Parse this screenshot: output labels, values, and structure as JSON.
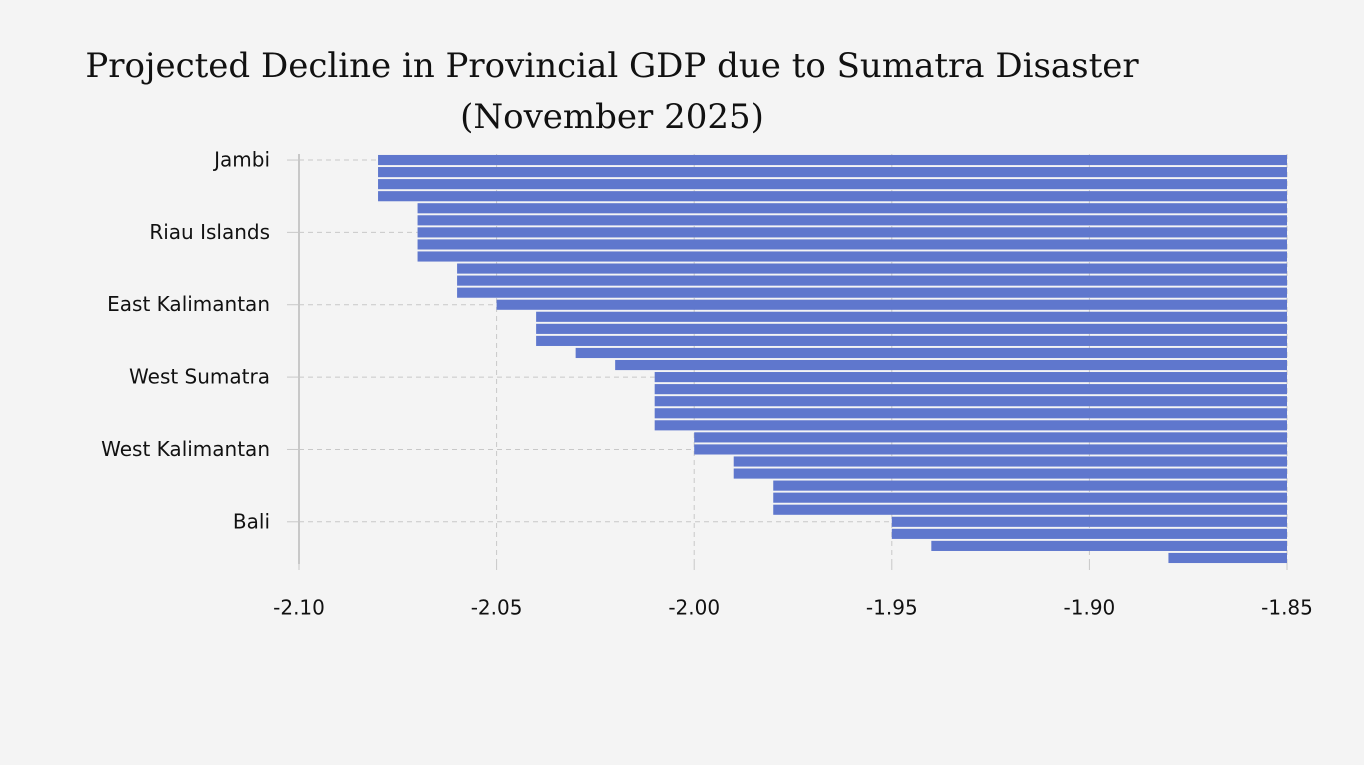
{
  "chart_data": {
    "type": "barh",
    "title": "Projected Decline in Provincial GDP due to Sumatra Disaster",
    "subtitle": "(November 2025)",
    "categories": [
      "Jambi",
      null,
      null,
      null,
      null,
      null,
      "Riau Islands",
      null,
      null,
      null,
      null,
      null,
      "East Kalimantan",
      null,
      null,
      null,
      null,
      null,
      "West Sumatra",
      null,
      null,
      null,
      null,
      null,
      "West Kalimantan",
      null,
      null,
      null,
      null,
      null,
      "Bali",
      null,
      null,
      null
    ],
    "values": [
      -2.08,
      -2.08,
      -2.08,
      -2.08,
      -2.07,
      -2.07,
      -2.07,
      -2.07,
      -2.07,
      -2.06,
      -2.06,
      -2.06,
      -2.05,
      -2.04,
      -2.04,
      -2.04,
      -2.03,
      -2.02,
      -2.01,
      -2.01,
      -2.01,
      -2.01,
      -2.01,
      -2.0,
      -2.0,
      -1.99,
      -1.99,
      -1.98,
      -1.98,
      -1.98,
      -1.95,
      -1.95,
      -1.94,
      -1.88
    ],
    "color": "#5f77cd",
    "xlim": [
      -2.1,
      -1.85
    ],
    "xticks": [
      {
        "value": -2.1,
        "label": "-2.10"
      },
      -2.05,
      {
        "value": -2,
        "label": "-2.00"
      },
      -1.95,
      {
        "value": -1.9,
        "label": "-1.90"
      },
      -1.85
    ],
    "grid": true
  }
}
